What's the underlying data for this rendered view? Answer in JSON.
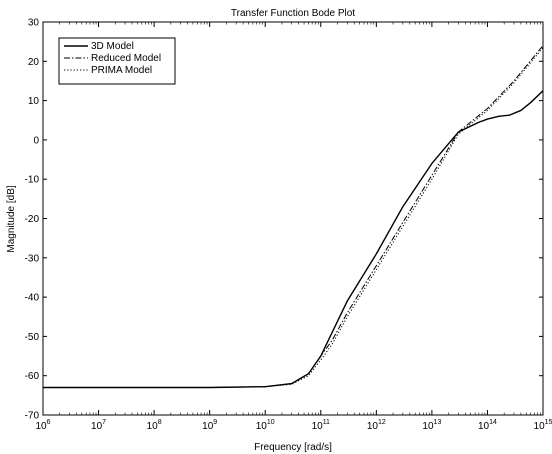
{
  "chart_data": {
    "type": "line",
    "title": "Transfer Function Bode Plot",
    "xlabel": "Frequency [rad/s]",
    "ylabel": "Magnitude [dB]",
    "xscale": "log",
    "xlim": [
      1000000.0,
      1000000000000000.0
    ],
    "ylim": [
      -70,
      30
    ],
    "x_tick_labels": [
      "10^6",
      "10^7",
      "10^8",
      "10^9",
      "10^10",
      "10^11",
      "10^12",
      "10^13",
      "10^14",
      "10^15"
    ],
    "y_ticks": [
      -70,
      -60,
      -50,
      -40,
      -30,
      -20,
      -10,
      0,
      10,
      20,
      30
    ],
    "grid": false,
    "legend_position": "top-left",
    "series": [
      {
        "name": "3D Model",
        "style": "solid",
        "x": [
          1000000.0,
          10000000.0,
          100000000.0,
          1000000000.0,
          10000000000.0,
          30000000000.0,
          60000000000.0,
          100000000000.0,
          160000000000.0,
          300000000000.0,
          1000000000000.0,
          3000000000000.0,
          10000000000000.0,
          30000000000000.0,
          70000000000000.0,
          100000000000000.0,
          160000000000000.0,
          250000000000000.0,
          400000000000000.0,
          600000000000000.0,
          1000000000000000.0
        ],
        "y": [
          -63,
          -63,
          -63,
          -63,
          -62.8,
          -62,
          -59.5,
          -55,
          -49,
          -41,
          -29,
          -17,
          -6,
          2,
          4.5,
          5.3,
          6,
          6.3,
          7.5,
          9.5,
          12.5
        ]
      },
      {
        "name": "Reduced Model",
        "style": "dashdot",
        "x": [
          1000000.0,
          10000000.0,
          100000000.0,
          1000000000.0,
          10000000000.0,
          30000000000.0,
          60000000000.0,
          100000000000.0,
          160000000000.0,
          300000000000.0,
          1000000000000.0,
          3000000000000.0,
          10000000000000.0,
          30000000000000.0,
          100000000000000.0,
          300000000000000.0,
          1000000000000000.0
        ],
        "y": [
          -63,
          -63,
          -63,
          -63,
          -62.8,
          -62,
          -59.5,
          -55,
          -51,
          -44,
          -32,
          -21,
          -9,
          2,
          8,
          15,
          24
        ]
      },
      {
        "name": "PRIMA Model",
        "style": "dotted",
        "x": [
          1000000.0,
          10000000.0,
          100000000.0,
          1000000000.0,
          10000000000.0,
          30000000000.0,
          60000000000.0,
          100000000000.0,
          160000000000.0,
          300000000000.0,
          1000000000000.0,
          3000000000000.0,
          10000000000000.0,
          30000000000000.0,
          100000000000000.0,
          300000000000000.0,
          1000000000000000.0
        ],
        "y": [
          -63,
          -63,
          -63,
          -63,
          -62.8,
          -62.2,
          -60,
          -56,
          -52,
          -45,
          -33,
          -22,
          -10,
          1.5,
          7.5,
          14.5,
          23.5
        ]
      }
    ]
  }
}
